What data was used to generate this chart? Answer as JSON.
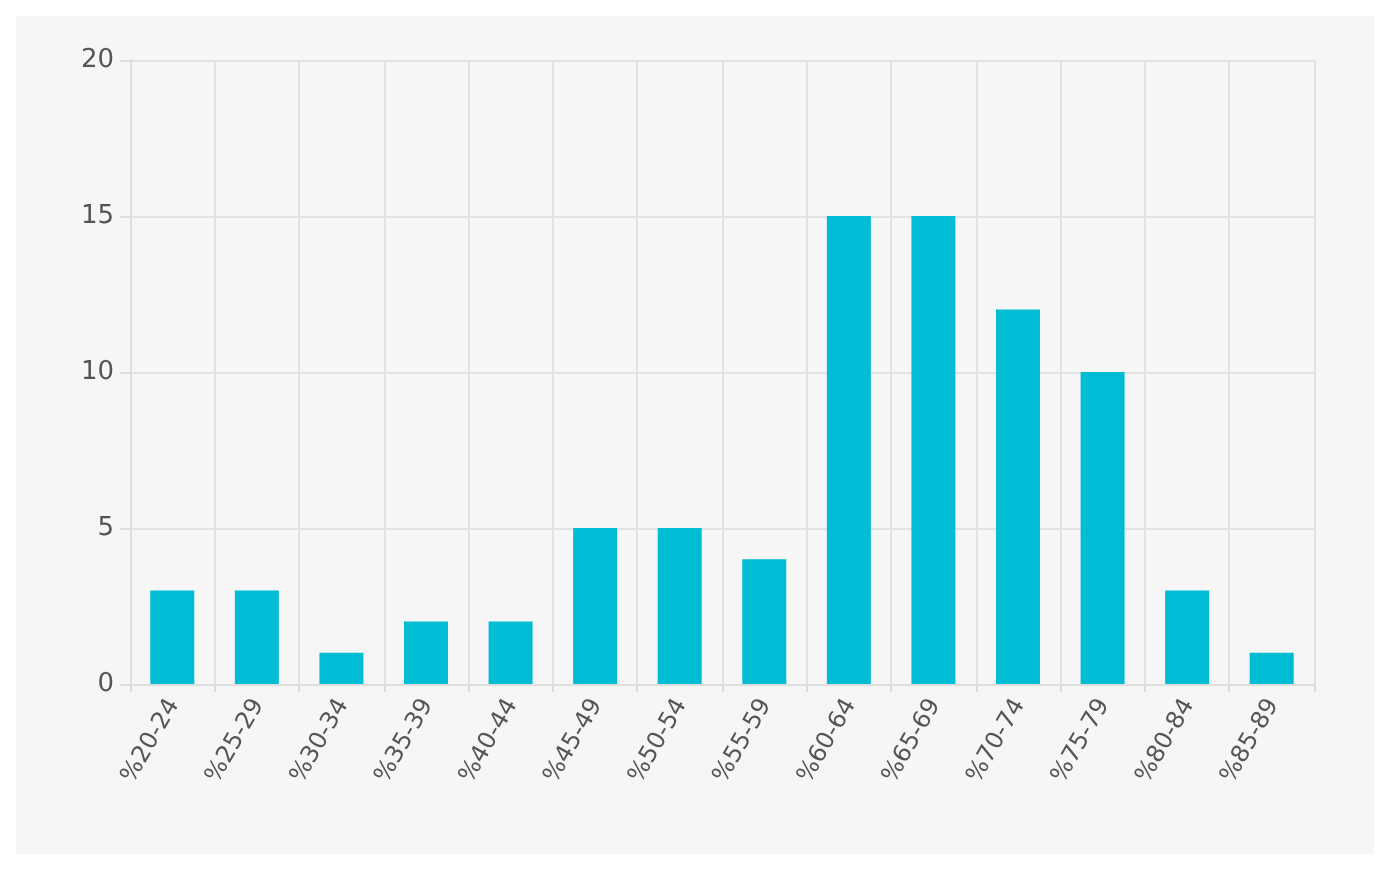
{
  "chart_data": {
    "type": "bar",
    "categories": [
      "%20-24",
      "%25-29",
      "%30-34",
      "%35-39",
      "%40-44",
      "%45-49",
      "%50-54",
      "%55-59",
      "%60-64",
      "%65-69",
      "%70-74",
      "%75-79",
      "%80-84",
      "%85-89"
    ],
    "values": [
      3,
      3,
      1,
      2,
      2,
      5,
      5,
      4,
      15,
      15,
      12,
      10,
      3,
      1
    ],
    "color": "#00bcd4",
    "ylim": [
      0,
      20
    ],
    "yticks": [
      0,
      5,
      10,
      15,
      20
    ],
    "grid": true
  }
}
